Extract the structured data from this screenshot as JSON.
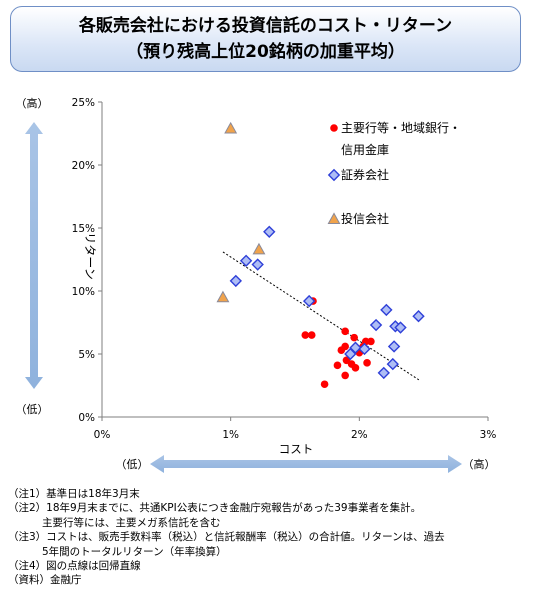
{
  "title": {
    "line1": "各販売会社における投資信託のコスト・リターン",
    "line2": "（預り残高上位20銘柄の加重平均）"
  },
  "y_arrow": {
    "top": "（高）",
    "bottom": "（低）"
  },
  "x_arrow": {
    "left": "（低）",
    "right": "（高）"
  },
  "notes": {
    "n1": "（注1）基準日は18年3月末",
    "n2": "（注2）18年9月末までに、共通KPI公表につき金融庁宛報告があった39事業者を集計。",
    "n2b": "主要行等には、主要メガ系信託を含む",
    "n3": "（注3）コストは、販売手数料率（税込）と信託報酬率（税込）の合計値。リターンは、過去",
    "n3b": "5年間のトータルリターン（年率換算）",
    "n4": "（注4）図の点線は回帰直線",
    "src": "（資料）金融庁"
  },
  "chart_data": {
    "type": "scatter",
    "xlabel": "コスト",
    "ylabel": "リターン",
    "xlim": [
      0,
      3
    ],
    "ylim": [
      0,
      25
    ],
    "x_ticks": [
      "0%",
      "1%",
      "2%",
      "3%"
    ],
    "y_ticks": [
      "0%",
      "5%",
      "10%",
      "15%",
      "20%",
      "25%"
    ],
    "grid": false,
    "legend_position": "top-right",
    "series": [
      {
        "name": "主要行等・地域銀行・信用金庫",
        "marker": "circle",
        "color": "#ff0000",
        "points": [
          [
            1.58,
            6.5
          ],
          [
            1.63,
            6.5
          ],
          [
            1.64,
            9.2
          ],
          [
            1.73,
            2.6
          ],
          [
            1.83,
            4.1
          ],
          [
            1.86,
            5.3
          ],
          [
            1.89,
            3.3
          ],
          [
            1.89,
            5.6
          ],
          [
            1.89,
            6.8
          ],
          [
            1.9,
            4.5
          ],
          [
            1.93,
            5.0
          ],
          [
            1.94,
            4.2
          ],
          [
            1.96,
            6.3
          ],
          [
            1.97,
            3.9
          ],
          [
            2.0,
            5.1
          ],
          [
            2.03,
            5.6
          ],
          [
            2.05,
            6.0
          ],
          [
            2.06,
            4.3
          ],
          [
            2.09,
            6.0
          ]
        ]
      },
      {
        "name": "証券会社",
        "marker": "diamond",
        "color": "#2f40d8",
        "points": [
          [
            1.04,
            10.8
          ],
          [
            1.12,
            12.4
          ],
          [
            1.21,
            12.1
          ],
          [
            1.3,
            14.7
          ],
          [
            1.61,
            9.2
          ],
          [
            1.93,
            5.0
          ],
          [
            1.97,
            5.5
          ],
          [
            2.04,
            5.4
          ],
          [
            2.13,
            7.3
          ],
          [
            2.19,
            3.5
          ],
          [
            2.21,
            8.5
          ],
          [
            2.26,
            4.2
          ],
          [
            2.27,
            5.6
          ],
          [
            2.28,
            7.2
          ],
          [
            2.32,
            7.1
          ],
          [
            2.46,
            8.0
          ]
        ]
      },
      {
        "name": "投信会社",
        "marker": "triangle",
        "color": "#f0a34c",
        "points": [
          [
            0.94,
            9.5
          ],
          [
            1.0,
            22.9
          ],
          [
            1.22,
            13.3
          ]
        ]
      }
    ],
    "regression_line": {
      "x": [
        0.94,
        2.47
      ],
      "y": [
        13.1,
        2.9
      ]
    }
  }
}
